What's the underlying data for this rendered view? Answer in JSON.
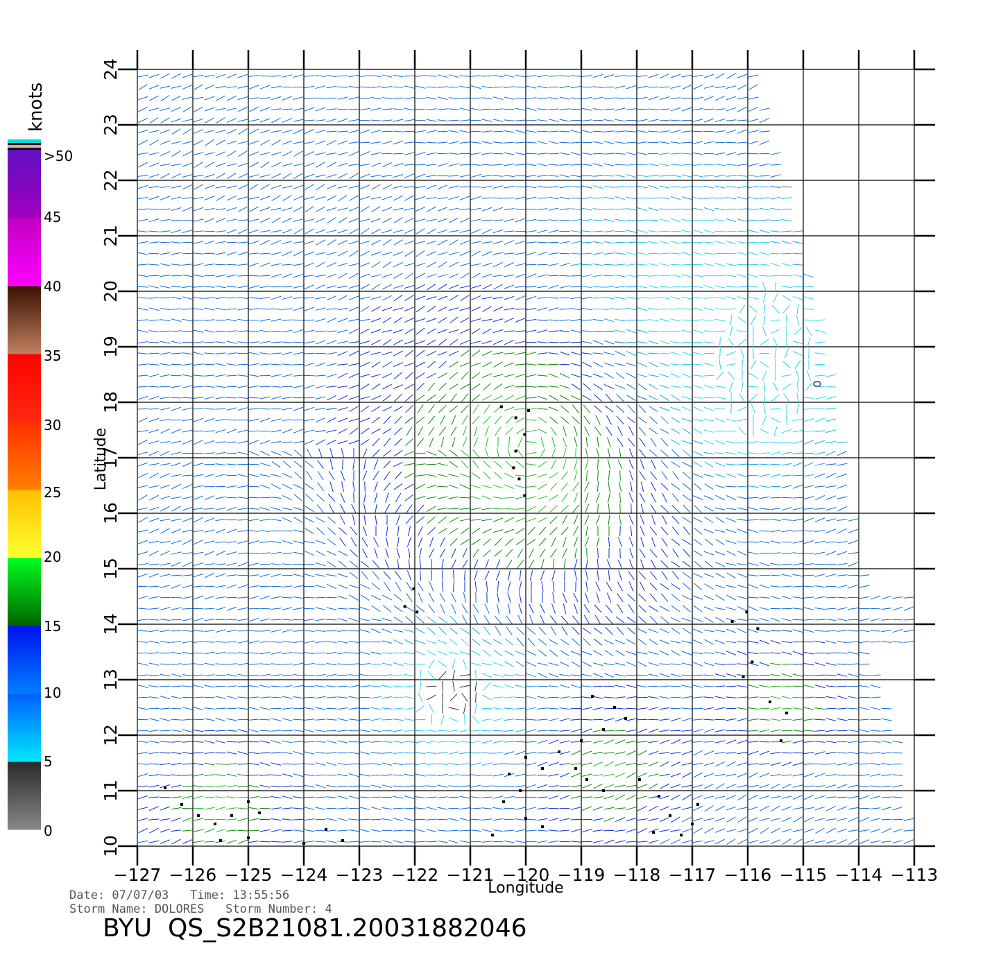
{
  "chart_data": {
    "type": "scatter",
    "subtype": "wind-vector-barbs",
    "title": "",
    "xlabel": "Longitude",
    "ylabel": "Latitude",
    "xlim": [
      -127,
      -113
    ],
    "ylim": [
      10,
      24
    ],
    "xticks": [
      -127,
      -126,
      -125,
      -124,
      -123,
      -122,
      -121,
      -120,
      -119,
      -118,
      -117,
      -116,
      -115,
      -114,
      -113
    ],
    "yticks": [
      10,
      11,
      12,
      13,
      14,
      15,
      16,
      17,
      18,
      19,
      20,
      21,
      22,
      23,
      24
    ],
    "xtick_labels": [
      "−127",
      "−126",
      "−125",
      "−124",
      "−123",
      "−122",
      "−121",
      "−120",
      "−119",
      "−118",
      "−117",
      "−116",
      "−115",
      "−114",
      "−113"
    ],
    "ytick_labels": [
      "10",
      "11",
      "12",
      "13",
      "14",
      "15",
      "16",
      "17",
      "18",
      "19",
      "20",
      "21",
      "22",
      "23",
      "24"
    ],
    "grid": true,
    "legend_placement": "left",
    "colorbar": {
      "unit": "knots",
      "labels": [
        "0",
        "5",
        "10",
        "15",
        "20",
        "25",
        "30",
        "35",
        "40",
        "45",
        ">50"
      ],
      "bands": [
        {
          "from": 0,
          "to": 5,
          "colors": [
            "#888888",
            "#2a2a2a"
          ]
        },
        {
          "from": 5,
          "to": 10,
          "colors": [
            "#00e8f8",
            "#0060ff"
          ]
        },
        {
          "from": 10,
          "to": 15,
          "colors": [
            "#0080ff",
            "#0010f0"
          ]
        },
        {
          "from": 15,
          "to": 20,
          "colors": [
            "#006400",
            "#00ff20"
          ]
        },
        {
          "from": 20,
          "to": 25,
          "colors": [
            "#ffff30",
            "#ffc000"
          ]
        },
        {
          "from": 25,
          "to": 30,
          "colors": [
            "#ff8000",
            "#ff3000"
          ]
        },
        {
          "from": 30,
          "to": 35,
          "colors": [
            "#ff2a10",
            "#ff0000"
          ]
        },
        {
          "from": 35,
          "to": 40,
          "colors": [
            "#c08060",
            "#3a1000"
          ]
        },
        {
          "from": 40,
          "to": 45,
          "colors": [
            "#ff00ff",
            "#c000c0"
          ]
        },
        {
          "from": 45,
          "to": 50,
          "colors": [
            "#a000c0",
            "#6010c0"
          ]
        }
      ]
    },
    "swath_edge": [
      [
        -127,
        10
      ],
      [
        -127,
        24
      ],
      [
        -115.9,
        24
      ],
      [
        -115.3,
        22
      ],
      [
        -114.8,
        20
      ],
      [
        -114.4,
        18
      ],
      [
        -114.1,
        16
      ],
      [
        -113.8,
        14.5
      ],
      [
        -113.8,
        13.5
      ],
      [
        -113.3,
        12
      ],
      [
        -113,
        10
      ]
    ],
    "wind_regions": [
      {
        "name": "background",
        "speed_kt": 12
      },
      {
        "name": "storm-core",
        "center": [
          -119.9,
          17.2
        ],
        "speed_kt": 20
      },
      {
        "name": "east-light",
        "center": [
          -116.0,
          18.5
        ],
        "speed_kt": 4
      },
      {
        "name": "east-moderate",
        "center": [
          -117.3,
          20.0
        ],
        "speed_kt": 7
      },
      {
        "name": "south-calm",
        "center": [
          -121.3,
          12.8
        ],
        "speed_kt": 4
      },
      {
        "name": "south-band",
        "center": [
          -118.5,
          11.3
        ],
        "speed_kt": 18
      },
      {
        "name": "southeast-band",
        "center": [
          -115.4,
          12.6
        ],
        "speed_kt": 19
      },
      {
        "name": "southwest-band",
        "center": [
          -125.5,
          10.7
        ],
        "speed_kt": 19
      }
    ],
    "flagged_cells": [
      [
        -120.44,
        17.92
      ],
      [
        -120.18,
        17.72
      ],
      [
        -120.02,
        17.42
      ],
      [
        -120.18,
        17.12
      ],
      [
        -120.22,
        16.82
      ],
      [
        -120.12,
        16.62
      ],
      [
        -120.02,
        16.32
      ],
      [
        -119.95,
        17.85
      ],
      [
        -122.02,
        14.64
      ],
      [
        -122.18,
        14.32
      ],
      [
        -121.96,
        14.22
      ],
      [
        -116.02,
        14.22
      ],
      [
        -116.28,
        14.05
      ],
      [
        -115.82,
        13.92
      ],
      [
        -115.92,
        13.32
      ],
      [
        -116.08,
        13.05
      ],
      [
        -115.6,
        12.6
      ],
      [
        -115.3,
        12.4
      ],
      [
        -115.4,
        11.9
      ],
      [
        -118.8,
        12.7
      ],
      [
        -118.4,
        12.5
      ],
      [
        -118.2,
        12.3
      ],
      [
        -118.6,
        12.1
      ],
      [
        -119.0,
        11.9
      ],
      [
        -119.4,
        11.7
      ],
      [
        -119.1,
        11.4
      ],
      [
        -118.9,
        11.2
      ],
      [
        -118.6,
        11.0
      ],
      [
        -120.0,
        11.6
      ],
      [
        -119.7,
        11.4
      ],
      [
        -120.3,
        11.3
      ],
      [
        -120.1,
        11.0
      ],
      [
        -120.4,
        10.8
      ],
      [
        -120.0,
        10.5
      ],
      [
        -119.7,
        10.35
      ],
      [
        -120.6,
        10.2
      ],
      [
        -117.95,
        11.2
      ],
      [
        -117.6,
        10.9
      ],
      [
        -117.4,
        10.55
      ],
      [
        -117.7,
        10.25
      ],
      [
        -117.2,
        10.2
      ],
      [
        -117.0,
        10.4
      ],
      [
        -116.9,
        10.75
      ],
      [
        -126.5,
        11.05
      ],
      [
        -126.2,
        10.75
      ],
      [
        -125.9,
        10.55
      ],
      [
        -125.6,
        10.4
      ],
      [
        -125.3,
        10.55
      ],
      [
        -125.0,
        10.8
      ],
      [
        -124.8,
        10.6
      ],
      [
        -125.5,
        10.1
      ],
      [
        -125.0,
        10.15
      ],
      [
        -124.0,
        10.05
      ],
      [
        -123.6,
        10.3
      ],
      [
        -123.3,
        10.1
      ]
    ]
  },
  "colorbar_labels": {
    "unit": "knots",
    "l50": ">50",
    "l45": "45",
    "l40": "40",
    "l35": "35",
    "l30": "30",
    "l25": "25",
    "l20": "20",
    "l15": "15",
    "l10": "10",
    "l5": "5",
    "l0": "0"
  },
  "footer": {
    "date_line": "Date: 07/07/03   Time: 13:55:56",
    "storm_line": "Storm Name: DOLORES   Storm Number: 4",
    "product_id": "BYU  QS_S2B21081.20031882046"
  }
}
